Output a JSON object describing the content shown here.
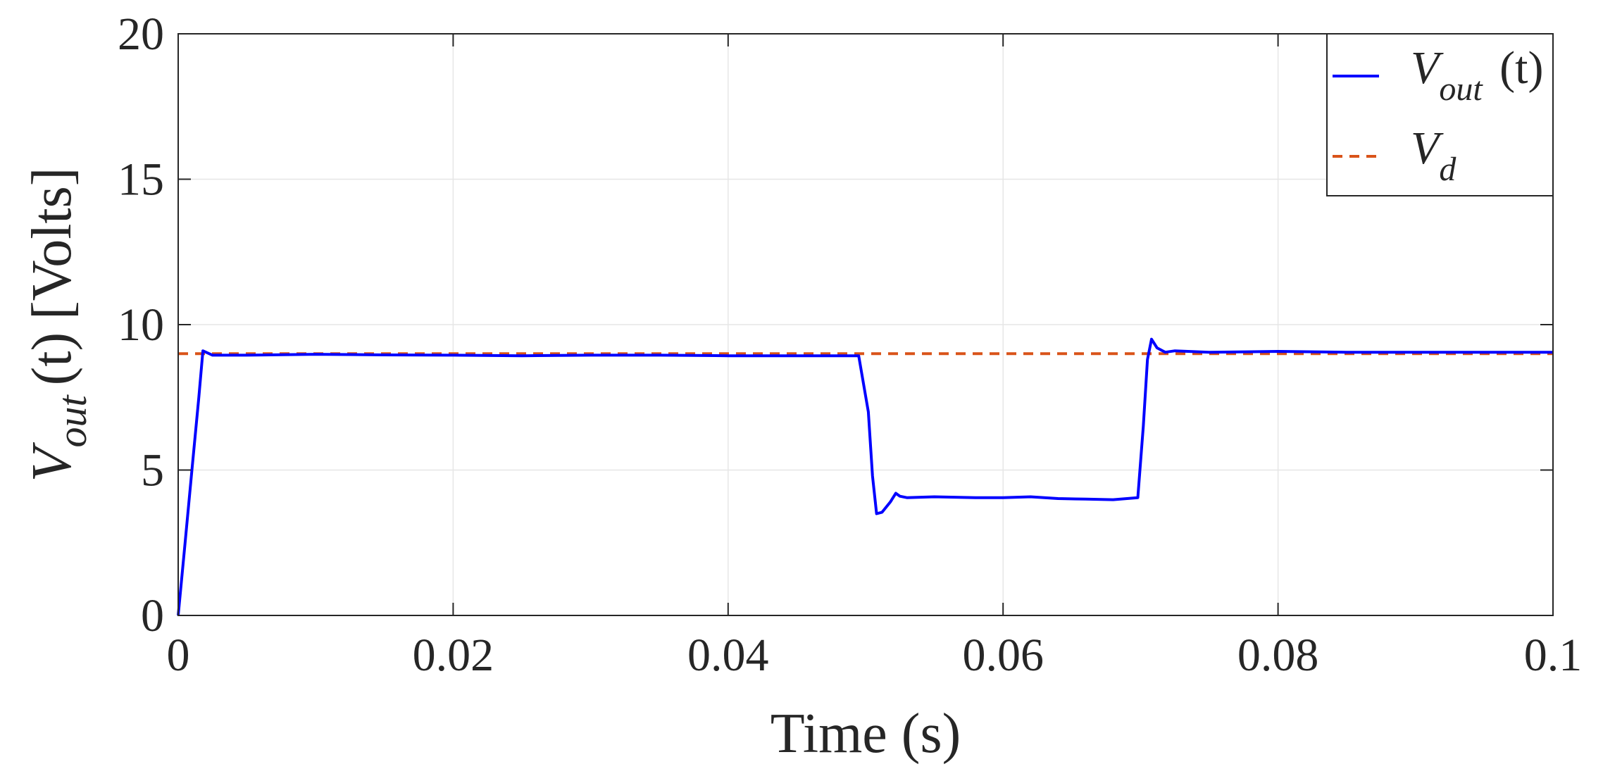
{
  "chart_data": {
    "type": "line",
    "xlabel": "Time (s)",
    "ylabel": {
      "main": "V",
      "sub": "out",
      "arg": "(t)",
      "unit": "[Volts]"
    },
    "xlim": [
      0,
      0.1
    ],
    "ylim": [
      0,
      20
    ],
    "xticks": [
      0,
      0.02,
      0.04,
      0.06,
      0.08,
      0.1
    ],
    "xtick_labels": [
      "0",
      "0.02",
      "0.04",
      "0.06",
      "0.08",
      "0.1"
    ],
    "yticks": [
      0,
      5,
      10,
      15,
      20
    ],
    "ytick_labels": [
      "0",
      "5",
      "10",
      "15",
      "20"
    ],
    "grid": true,
    "legend_position": "top-right",
    "series": [
      {
        "name": "V_out (t)",
        "legend": {
          "main": "V",
          "sub": "out",
          "suffix": " (t)"
        },
        "color": "#0000ff",
        "style": "solid",
        "x": [
          0,
          0.0005,
          0.001,
          0.0015,
          0.0018,
          0.0025,
          0.005,
          0.01,
          0.015,
          0.02,
          0.025,
          0.03,
          0.035,
          0.04,
          0.045,
          0.0495,
          0.0502,
          0.0505,
          0.0508,
          0.0512,
          0.0518,
          0.0522,
          0.0525,
          0.053,
          0.055,
          0.058,
          0.06,
          0.062,
          0.064,
          0.066,
          0.068,
          0.0698,
          0.0702,
          0.0705,
          0.0708,
          0.0712,
          0.0718,
          0.0725,
          0.075,
          0.08,
          0.085,
          0.09,
          0.095,
          0.1
        ],
        "y": [
          0,
          2.5,
          5.0,
          7.5,
          9.1,
          8.95,
          8.95,
          8.98,
          8.96,
          8.95,
          8.93,
          8.95,
          8.95,
          8.93,
          8.93,
          8.93,
          7.0,
          4.8,
          3.5,
          3.55,
          3.9,
          4.2,
          4.1,
          4.05,
          4.08,
          4.05,
          4.05,
          4.08,
          4.02,
          4.0,
          3.98,
          4.05,
          6.5,
          8.8,
          9.5,
          9.2,
          9.05,
          9.1,
          9.05,
          9.08,
          9.05,
          9.05,
          9.05,
          9.05
        ]
      },
      {
        "name": "V_d",
        "legend": {
          "main": "V",
          "sub": "d",
          "suffix": ""
        },
        "color": "#d95319",
        "style": "dashed",
        "x": [
          0,
          0.1
        ],
        "y": [
          9,
          9
        ]
      }
    ]
  }
}
